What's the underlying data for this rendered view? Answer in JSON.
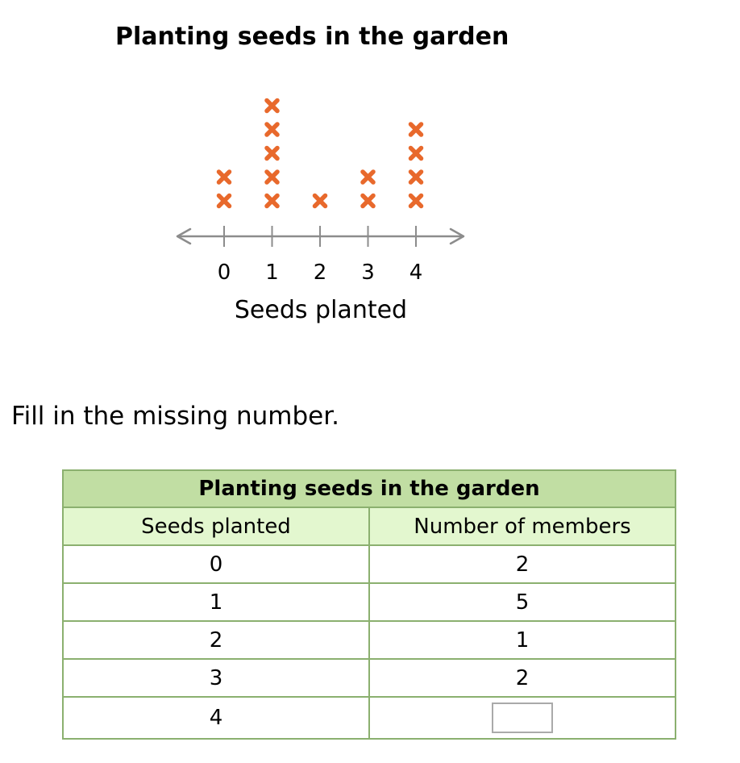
{
  "chart_data": {
    "type": "dot",
    "title": "Planting seeds in the garden",
    "xlabel": "Seeds planted",
    "categories": [
      0,
      1,
      2,
      3,
      4
    ],
    "tick_labels": [
      "0",
      "1",
      "2",
      "3",
      "4"
    ],
    "values": [
      2,
      5,
      1,
      2,
      4
    ],
    "marker": "x",
    "marker_color": "#e8692c",
    "axis_color": "#8c8c8c"
  },
  "prompt": "Fill in the missing number.",
  "table": {
    "title": "Planting seeds in the garden",
    "headers": [
      "Seeds planted",
      "Number of members"
    ],
    "rows": [
      [
        "0",
        "2"
      ],
      [
        "1",
        "5"
      ],
      [
        "2",
        "1"
      ],
      [
        "3",
        "2"
      ],
      [
        "4",
        ""
      ]
    ],
    "answer_value": ""
  },
  "colors": {
    "table_title_bg": "#c1dea3",
    "table_header_bg": "#e3f7cf",
    "table_border": "#8bb06f"
  }
}
